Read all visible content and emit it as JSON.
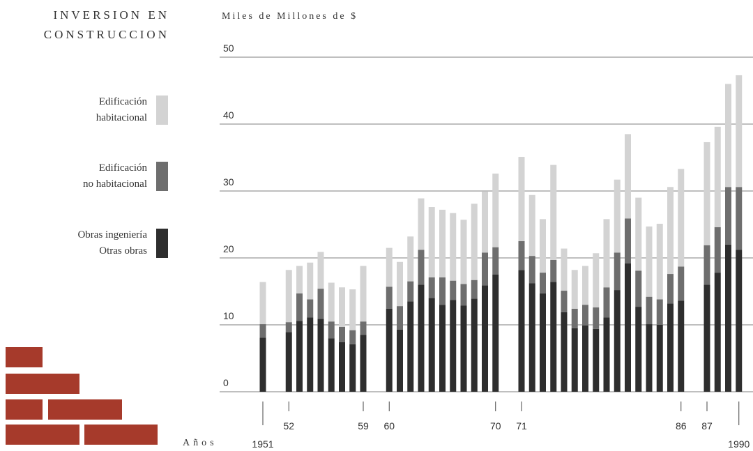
{
  "chart_data": {
    "type": "stacked_bar",
    "title": "INVERSION EN\nCONSTRUCCION",
    "y_label": "Miles de Millones de $",
    "x_label": "Años",
    "categories": [
      "1951",
      "52",
      null,
      null,
      null,
      null,
      null,
      null,
      "59",
      "60",
      null,
      null,
      null,
      null,
      null,
      null,
      null,
      null,
      null,
      "70",
      "71",
      null,
      null,
      null,
      null,
      null,
      null,
      null,
      null,
      null,
      null,
      null,
      null,
      null,
      null,
      "86",
      "87",
      null,
      null,
      "1990"
    ],
    "series": [
      {
        "name": "Obras ingeniería\nOtras obras",
        "color": "#2e2e2e",
        "values": [
          8.1,
          8.9,
          10.6,
          11.1,
          10.9,
          8.0,
          7.4,
          7.1,
          8.5,
          12.4,
          9.3,
          13.5,
          16.0,
          14.0,
          13.0,
          13.7,
          12.9,
          13.9,
          15.9,
          17.5,
          18.2,
          16.2,
          14.7,
          16.4,
          11.9,
          9.5,
          9.9,
          9.4,
          11.1,
          15.2,
          19.2,
          12.7,
          10.1,
          10.0,
          13.2,
          13.6,
          16.0,
          17.8,
          22.0,
          21.2
        ]
      },
      {
        "name": "Edificación\nno habitacional",
        "color": "#6e6e6e",
        "values": [
          2.0,
          1.5,
          4.1,
          2.7,
          4.5,
          2.5,
          2.3,
          2.1,
          2.0,
          3.3,
          3.5,
          3.0,
          5.2,
          3.1,
          4.1,
          2.9,
          3.2,
          2.8,
          4.9,
          4.1,
          4.3,
          4.1,
          3.1,
          3.3,
          3.2,
          2.9,
          3.1,
          3.2,
          4.5,
          5.6,
          6.7,
          5.4,
          4.1,
          3.8,
          4.4,
          5.1,
          5.9,
          6.8,
          8.6,
          9.4
        ]
      },
      {
        "name": "Edificación\nhabitacional",
        "color": "#d3d3d3",
        "values": [
          6.3,
          7.8,
          4.1,
          5.5,
          5.5,
          5.8,
          5.9,
          6.1,
          8.3,
          5.8,
          6.6,
          6.7,
          7.7,
          10.5,
          10.1,
          10.1,
          9.6,
          11.4,
          9.1,
          11.0,
          12.6,
          9.1,
          8.0,
          14.2,
          6.3,
          5.8,
          5.8,
          8.1,
          10.2,
          10.9,
          12.6,
          10.9,
          10.5,
          11.3,
          13.0,
          14.6,
          15.4,
          15.0,
          15.4,
          16.7
        ]
      }
    ],
    "ylim": [
      0,
      50
    ],
    "yticks": [
      0,
      10,
      20,
      30,
      40,
      50
    ],
    "grid": true
  }
}
